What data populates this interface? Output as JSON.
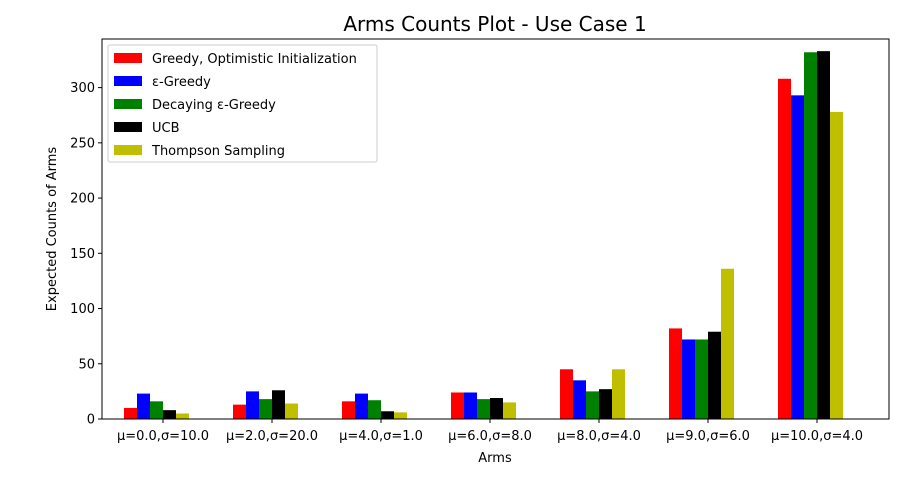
{
  "chart_data": {
    "type": "bar",
    "title": "Arms Counts Plot - Use Case 1",
    "xlabel": "Arms",
    "ylabel": "Expected Counts of Arms",
    "ylim": [
      0,
      344
    ],
    "yticks": [
      0,
      50,
      100,
      150,
      200,
      250,
      300
    ],
    "categories": [
      "μ=0.0,σ=10.0",
      "μ=2.0,σ=20.0",
      "μ=4.0,σ=1.0",
      "μ=6.0,σ=8.0",
      "μ=8.0,σ=4.0",
      "μ=9.0,σ=6.0",
      "μ=10.0,σ=4.0"
    ],
    "series": [
      {
        "name": "Greedy, Optimistic Initialization",
        "color": "#ff0000",
        "values": [
          10,
          13,
          16,
          24,
          45,
          82,
          308
        ]
      },
      {
        "name": "ε-Greedy",
        "color": "#0000ff",
        "values": [
          23,
          25,
          23,
          24,
          35,
          72,
          293
        ]
      },
      {
        "name": "Decaying ε-Greedy",
        "color": "#008000",
        "values": [
          16,
          18,
          17,
          18,
          25,
          72,
          332
        ]
      },
      {
        "name": "UCB",
        "color": "#000000",
        "values": [
          8,
          26,
          7,
          19,
          27,
          79,
          333
        ]
      },
      {
        "name": "Thompson Sampling",
        "color": "#bfbf00",
        "values": [
          5,
          14,
          6,
          15,
          45,
          136,
          278
        ]
      }
    ],
    "grid": false,
    "legend": "top-left"
  }
}
